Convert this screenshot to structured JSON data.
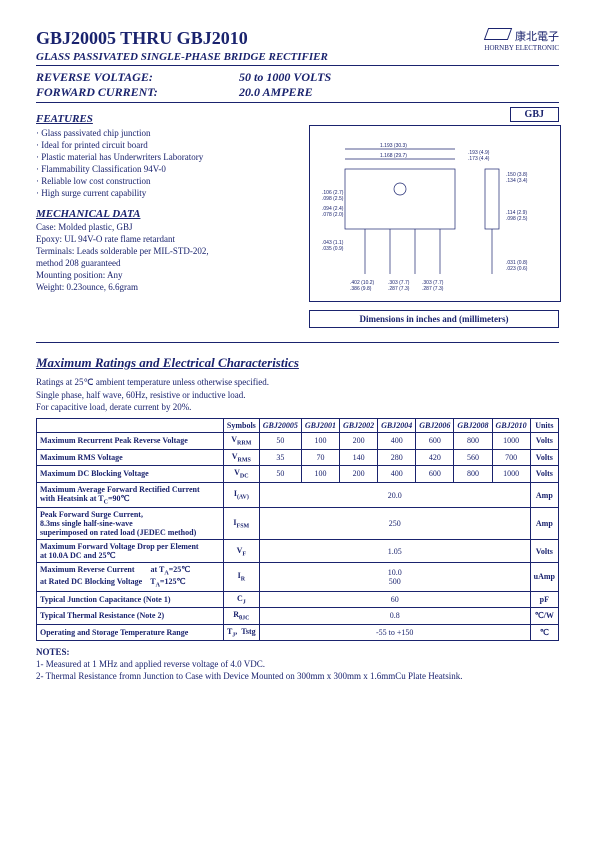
{
  "header": {
    "title": "GBJ20005 THRU GBJ2010",
    "subtitle": "GLASS PASSIVATED SINGLE-PHASE BRIDGE RECTIFIER",
    "rev_voltage_label": "REVERSE VOLTAGE:",
    "rev_voltage_val": "50 to 1000 VOLTS",
    "fwd_current_label": "FORWARD CURRENT:",
    "fwd_current_val": "20.0 AMPERE",
    "brand_cn": "康北電子",
    "brand_en": "HORNBY ELECTRONIC"
  },
  "features": {
    "head": "FEATURES",
    "items": [
      "Glass passivated chip junction",
      "Ideal for printed circuit board",
      "Plastic material has Underwriters Laboratory",
      "Flammability Classification 94V-0",
      "Reliable low cost construction",
      "High surge current capability"
    ]
  },
  "mechanical": {
    "head": "MECHANICAL DATA",
    "lines": [
      "Case: Molded plastic, GBJ",
      "Epoxy: UL 94V-O rate flame retardant",
      "Terminals: Leads solderable per MIL-STD-202,",
      "method 208 guaranteed",
      "Mounting position: Any",
      "Weight: 0.23ounce, 6.6gram"
    ]
  },
  "package": {
    "code": "GBJ",
    "caption": "Dimensions in inches and (millimeters)"
  },
  "ratings": {
    "title": "Maximum Ratings and Electrical Characteristics",
    "conditions": [
      "Ratings at 25℃ ambient temperature unless otherwise specified.",
      "Single phase, half wave, 60Hz, resistive or inductive load.",
      "For capacitive load, derate current by 20%."
    ],
    "cols": {
      "symbols": "Symbols",
      "parts": [
        "GBJ20005",
        "GBJ2001",
        "GBJ2002",
        "GBJ2004",
        "GBJ2006",
        "GBJ2008",
        "GBJ2010"
      ],
      "units": "Units"
    },
    "rows": [
      {
        "param": "Maximum Recurrent Peak Reverse Voltage",
        "sym": "V<sub>RRM</sub>",
        "vals": [
          "50",
          "100",
          "200",
          "400",
          "600",
          "800",
          "1000"
        ],
        "units": "Volts"
      },
      {
        "param": "Maximum RMS Voltage",
        "sym": "V<sub>RMS</sub>",
        "vals": [
          "35",
          "70",
          "140",
          "280",
          "420",
          "560",
          "700"
        ],
        "units": "Volts"
      },
      {
        "param": "Maximum DC Blocking Voltage",
        "sym": "V<sub>DC</sub>",
        "vals": [
          "50",
          "100",
          "200",
          "400",
          "600",
          "800",
          "1000"
        ],
        "units": "Volts"
      },
      {
        "param": "Maximum Average Forward Rectified Current<br>with Heatsink at T<sub>C</sub>=90℃",
        "sym": "I<sub>(AV)</sub>",
        "span": "20.0",
        "units": "Amp"
      },
      {
        "param": "Peak Forward Surge Current,<br>8.3ms single half-sine-wave<br>superimposed on rated load (JEDEC method)",
        "sym": "I<sub>FSM</sub>",
        "span": "250",
        "units": "Amp"
      },
      {
        "param": "Maximum Forward Voltage Drop per Element<br>at 10.0A DC and 25℃",
        "sym": "V<sub>F</sub>",
        "span": "1.05",
        "units": "Volts"
      },
      {
        "param": "Maximum Reverse Current&nbsp;&nbsp;&nbsp;&nbsp;&nbsp;&nbsp;&nbsp;&nbsp;at T<sub>A</sub>=25℃<br>at Rated DC Blocking Voltage&nbsp;&nbsp;&nbsp;&nbsp;T<sub>A</sub>=125℃",
        "sym": "I<sub>R</sub>",
        "span": "10.0<br>500",
        "units": "uAmp"
      },
      {
        "param": "Typical Junction Capacitance (Note 1)",
        "sym": "C<sub>J</sub>",
        "span": "60",
        "units": "pF"
      },
      {
        "param": "Typical Thermal Resistance (Note 2)",
        "sym": "R<sub>θJC</sub>",
        "span": "0.8",
        "units": "℃/W"
      },
      {
        "param": "Operating and Storage Temperature Range",
        "sym": "T<sub>J</sub>,&nbsp;&nbsp;Tstg",
        "span": "-55 to +150",
        "units": "℃"
      }
    ]
  },
  "notes": {
    "head": "NOTES:",
    "items": [
      "1- Measured at 1 MHz and applied reverse voltage of 4.0 VDC.",
      "2- Thermal Resistance fromn Junction to Case with Device Mounted on 300mm x 300mm x 1.6mmCu Plate Heatsink."
    ]
  },
  "style": {
    "text_color": "#1a236e",
    "border_color": "#1a236e",
    "bg": "#ffffff"
  }
}
